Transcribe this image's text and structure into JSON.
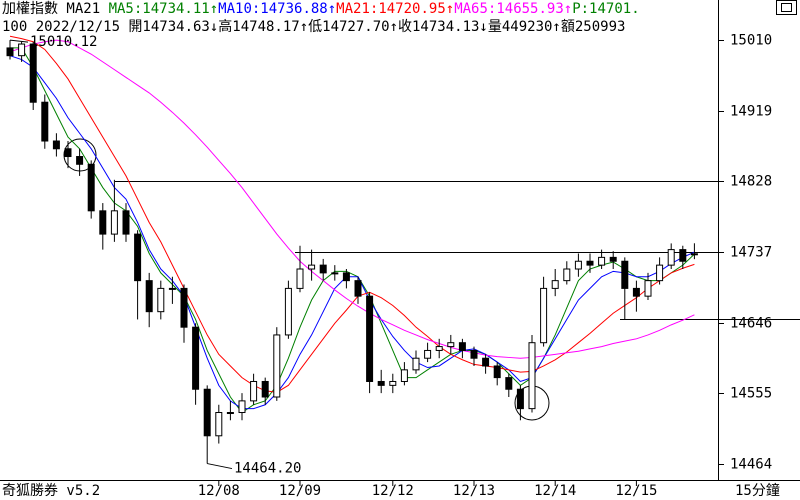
{
  "chart_data": {
    "type": "candlestick",
    "header_lines": [
      [
        {
          "text": "加權指數 MA21 ",
          "color": "#000000"
        },
        {
          "text": "MA5:14734.11↑",
          "color": "#008000"
        },
        {
          "text": "MA10:14736.88↑",
          "color": "#0000ff"
        },
        {
          "text": "MA21:14720.95↑",
          "color": "#ff0000"
        },
        {
          "text": "MA65:14655.93↑",
          "color": "#ff00ff"
        },
        {
          "text": "P:14701.",
          "color": "#008000"
        }
      ],
      [
        {
          "text": "100 2022/12/15 開14734.63↓高14748.17↑低14727.70↑收14734.13↓量449230↑額250993",
          "color": "#000000"
        }
      ]
    ],
    "categories": [
      null,
      null,
      null,
      null,
      null,
      null,
      null,
      null,
      null,
      null,
      null,
      null,
      null,
      null,
      null,
      null,
      null,
      null,
      "12/08",
      null,
      null,
      null,
      null,
      null,
      null,
      "12/09",
      null,
      null,
      null,
      null,
      null,
      null,
      null,
      "12/12",
      null,
      null,
      null,
      null,
      null,
      null,
      "12/13",
      null,
      null,
      null,
      null,
      null,
      null,
      "12/14",
      null,
      null,
      null,
      null,
      null,
      null,
      "12/15",
      null,
      null,
      null,
      null,
      null
    ],
    "open": [
      15000,
      14990,
      15005,
      14930,
      14880,
      14870,
      14860,
      14850,
      14790,
      14760,
      14790,
      14760,
      14700,
      14660,
      14690,
      14690,
      14640,
      14560,
      14500,
      14530,
      14530,
      14545,
      14570,
      14550,
      14630,
      14690,
      14715,
      14720,
      14710,
      14710,
      14700,
      14680,
      14570,
      14565,
      14570,
      14585,
      14600,
      14610,
      14615,
      14620,
      14610,
      14600,
      14590,
      14575,
      14560,
      14535,
      14620,
      14690,
      14700,
      14715,
      14725,
      14720,
      14730,
      14725,
      14690,
      14680,
      14700,
      14720,
      14740,
      14734.63
    ],
    "high": [
      15010.12,
      15008,
      15008,
      14940,
      14890,
      14880,
      14870,
      14855,
      14800,
      14830,
      14800,
      14765,
      14710,
      14700,
      14705,
      14695,
      14645,
      14565,
      14540,
      14545,
      14555,
      14580,
      14575,
      14640,
      14700,
      14745,
      14740,
      14728,
      14720,
      14715,
      14705,
      14685,
      14585,
      14580,
      14595,
      14610,
      14620,
      14625,
      14630,
      14625,
      14615,
      14605,
      14595,
      14580,
      14565,
      14630,
      14705,
      14715,
      14725,
      14735,
      14735,
      14740,
      14738,
      14730,
      14700,
      14710,
      14730,
      14748,
      14745,
      14748.17
    ],
    "low": [
      14985,
      14982,
      14920,
      14870,
      14860,
      14845,
      14835,
      14780,
      14740,
      14750,
      14750,
      14650,
      14640,
      14650,
      14670,
      14620,
      14540,
      14464.2,
      14490,
      14520,
      14520,
      14540,
      14540,
      14545,
      14625,
      14685,
      14700,
      14700,
      14700,
      14690,
      14670,
      14555,
      14555,
      14555,
      14565,
      14580,
      14595,
      14600,
      14605,
      14600,
      14590,
      14580,
      14565,
      14550,
      14520,
      14530,
      14615,
      14680,
      14695,
      14705,
      14710,
      14715,
      14715,
      14650,
      14660,
      14675,
      14695,
      14715,
      14715,
      14727.7
    ],
    "close": [
      14990,
      15005,
      14930,
      14880,
      14870,
      14860,
      14850,
      14790,
      14760,
      14790,
      14760,
      14700,
      14660,
      14690,
      14690,
      14640,
      14560,
      14500,
      14530,
      14530,
      14545,
      14570,
      14550,
      14630,
      14690,
      14715,
      14720,
      14710,
      14710,
      14700,
      14680,
      14570,
      14565,
      14570,
      14585,
      14600,
      14610,
      14615,
      14620,
      14610,
      14600,
      14590,
      14575,
      14560,
      14535,
      14620,
      14690,
      14700,
      14715,
      14725,
      14720,
      14730,
      14725,
      14690,
      14680,
      14700,
      14720,
      14740,
      14725,
      14734.13
    ],
    "series": [
      {
        "name": "MA5",
        "color": "#008000",
        "values": [
          15000,
          15000,
          14975,
          14945,
          14915,
          14885,
          14870,
          14845,
          14820,
          14800,
          14790,
          14770,
          14735,
          14710,
          14695,
          14680,
          14650,
          14610,
          14580,
          14550,
          14530,
          14540,
          14545,
          14565,
          14600,
          14640,
          14675,
          14700,
          14712,
          14712,
          14705,
          14680,
          14645,
          14610,
          14575,
          14575,
          14585,
          14595,
          14605,
          14610,
          14610,
          14605,
          14595,
          14580,
          14565,
          14575,
          14600,
          14630,
          14665,
          14700,
          14715,
          14720,
          14724,
          14715,
          14705,
          14700,
          14700,
          14710,
          14720,
          14734.11
        ]
      },
      {
        "name": "MA10",
        "color": "#0000ff",
        "values": [
          14990,
          14985,
          14975,
          14955,
          14935,
          14910,
          14890,
          14870,
          14845,
          14820,
          14805,
          14775,
          14740,
          14715,
          14700,
          14680,
          14640,
          14600,
          14565,
          14545,
          14535,
          14535,
          14540,
          14555,
          14575,
          14605,
          14630,
          14660,
          14690,
          14705,
          14705,
          14675,
          14650,
          14628,
          14610,
          14595,
          14588,
          14590,
          14600,
          14610,
          14612,
          14605,
          14595,
          14585,
          14570,
          14575,
          14600,
          14625,
          14650,
          14675,
          14690,
          14705,
          14712,
          14710,
          14705,
          14705,
          14712,
          14722,
          14730,
          14736.88
        ]
      },
      {
        "name": "MA21",
        "color": "#ff0000",
        "values": [
          15015,
          15012,
          15008,
          14998,
          14980,
          14960,
          14935,
          14910,
          14885,
          14860,
          14835,
          14805,
          14775,
          14750,
          14720,
          14690,
          14660,
          14630,
          14605,
          14590,
          14575,
          14565,
          14558,
          14556,
          14565,
          14585,
          14605,
          14625,
          14645,
          14662,
          14680,
          14685,
          14678,
          14668,
          14655,
          14640,
          14628,
          14615,
          14605,
          14598,
          14592,
          14590,
          14588,
          14585,
          14582,
          14583,
          14590,
          14598,
          14608,
          14620,
          14632,
          14645,
          14658,
          14668,
          14678,
          14690,
          14700,
          14710,
          14716,
          14720.95
        ]
      },
      {
        "name": "MA65",
        "color": "#ff00ff",
        "values": [
          14995,
          15000,
          15005,
          15008,
          15010,
          15008,
          15000,
          14992,
          14982,
          14972,
          14962,
          14952,
          14942,
          14930,
          14917,
          14903,
          14888,
          14872,
          14855,
          14838,
          14820,
          14800,
          14780,
          14760,
          14742,
          14725,
          14712,
          14700,
          14688,
          14677,
          14667,
          14658,
          14650,
          14643,
          14636,
          14630,
          14624,
          14619,
          14614,
          14610,
          14607,
          14604,
          14602,
          14601,
          14600,
          14601,
          14603,
          14605,
          14607,
          14609,
          14612,
          14615,
          14619,
          14622,
          14625,
          14630,
          14636,
          14643,
          14649,
          14655.93
        ]
      }
    ],
    "ylim": [
      14443,
      15036
    ],
    "yticks": [
      15010,
      14919,
      14828,
      14737,
      14646,
      14555,
      14464
    ],
    "hlines": [
      14828,
      14737,
      14650
    ],
    "annotations": [
      "15010.12",
      "14464.20"
    ],
    "footer_left": "奇狐勝券 v5.2",
    "footer_right": "15分鐘"
  }
}
